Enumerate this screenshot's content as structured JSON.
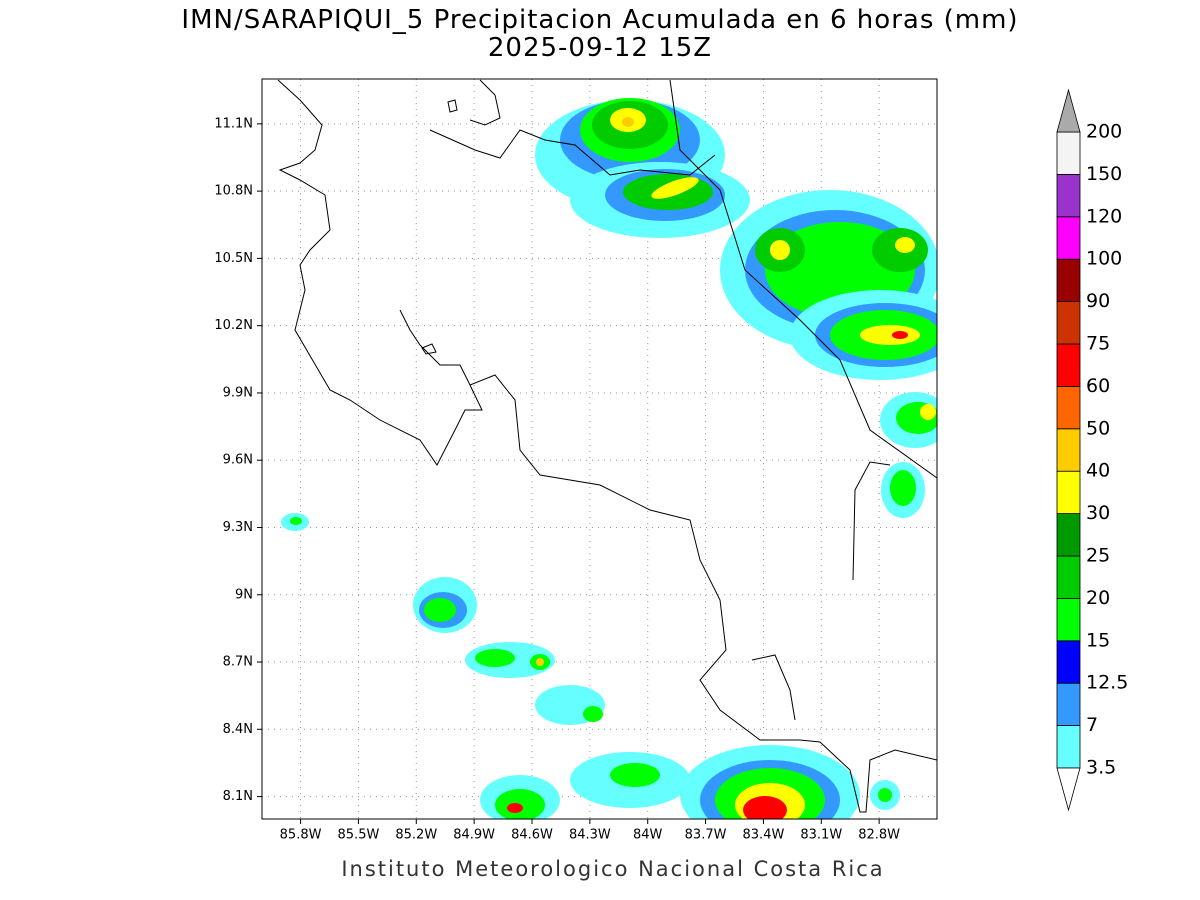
{
  "title": "IMN/SARAPIQUI_5 Precipitacion Acumulada en 6 horas (mm)",
  "subtitle": "2025-09-12 15Z",
  "map": {
    "lon_range": [
      -86.0,
      -82.5
    ],
    "lat_range": [
      8.0,
      11.3
    ],
    "grid": true,
    "lon_ticks": [
      {
        "value": -85.8,
        "label": "85.8W"
      },
      {
        "value": -85.5,
        "label": "85.5W"
      },
      {
        "value": -85.2,
        "label": "85.2W"
      },
      {
        "value": -84.9,
        "label": "84.9W"
      },
      {
        "value": -84.6,
        "label": "84.6W"
      },
      {
        "value": -84.3,
        "label": "84.3W"
      },
      {
        "value": -84.0,
        "label": "84W"
      },
      {
        "value": -83.7,
        "label": "83.7W"
      },
      {
        "value": -83.4,
        "label": "83.4W"
      },
      {
        "value": -83.1,
        "label": "83.1W"
      },
      {
        "value": -82.8,
        "label": "82.8W"
      }
    ],
    "lat_ticks": [
      {
        "value": 11.1,
        "label": "11.1N"
      },
      {
        "value": 10.8,
        "label": "10.8N"
      },
      {
        "value": 10.5,
        "label": "10.5N"
      },
      {
        "value": 10.2,
        "label": "10.2N"
      },
      {
        "value": 9.9,
        "label": "9.9N"
      },
      {
        "value": 9.6,
        "label": "9.6N"
      },
      {
        "value": 9.3,
        "label": "9.3N"
      },
      {
        "value": 9.0,
        "label": "9N"
      },
      {
        "value": 8.7,
        "label": "8.7N"
      },
      {
        "value": 8.4,
        "label": "8.4N"
      },
      {
        "value": 8.1,
        "label": "8.1N"
      }
    ]
  },
  "colorbar": {
    "levels": [
      3.5,
      7,
      12.5,
      15,
      20,
      25,
      30,
      40,
      50,
      60,
      75,
      90,
      100,
      120,
      150,
      200
    ],
    "colors": [
      "#66ffff",
      "#3399ff",
      "#0000ff",
      "#00ff00",
      "#00cc00",
      "#009900",
      "#ffff00",
      "#ffcc00",
      "#ff6600",
      "#ff0000",
      "#cc3300",
      "#990000",
      "#ff00ff",
      "#9933cc",
      "#f4f4f4"
    ],
    "under_color": "#ffffff",
    "over_color": "#aaaaaa"
  },
  "footer": "Instituto Meteorologico Nacional Costa Rica"
}
